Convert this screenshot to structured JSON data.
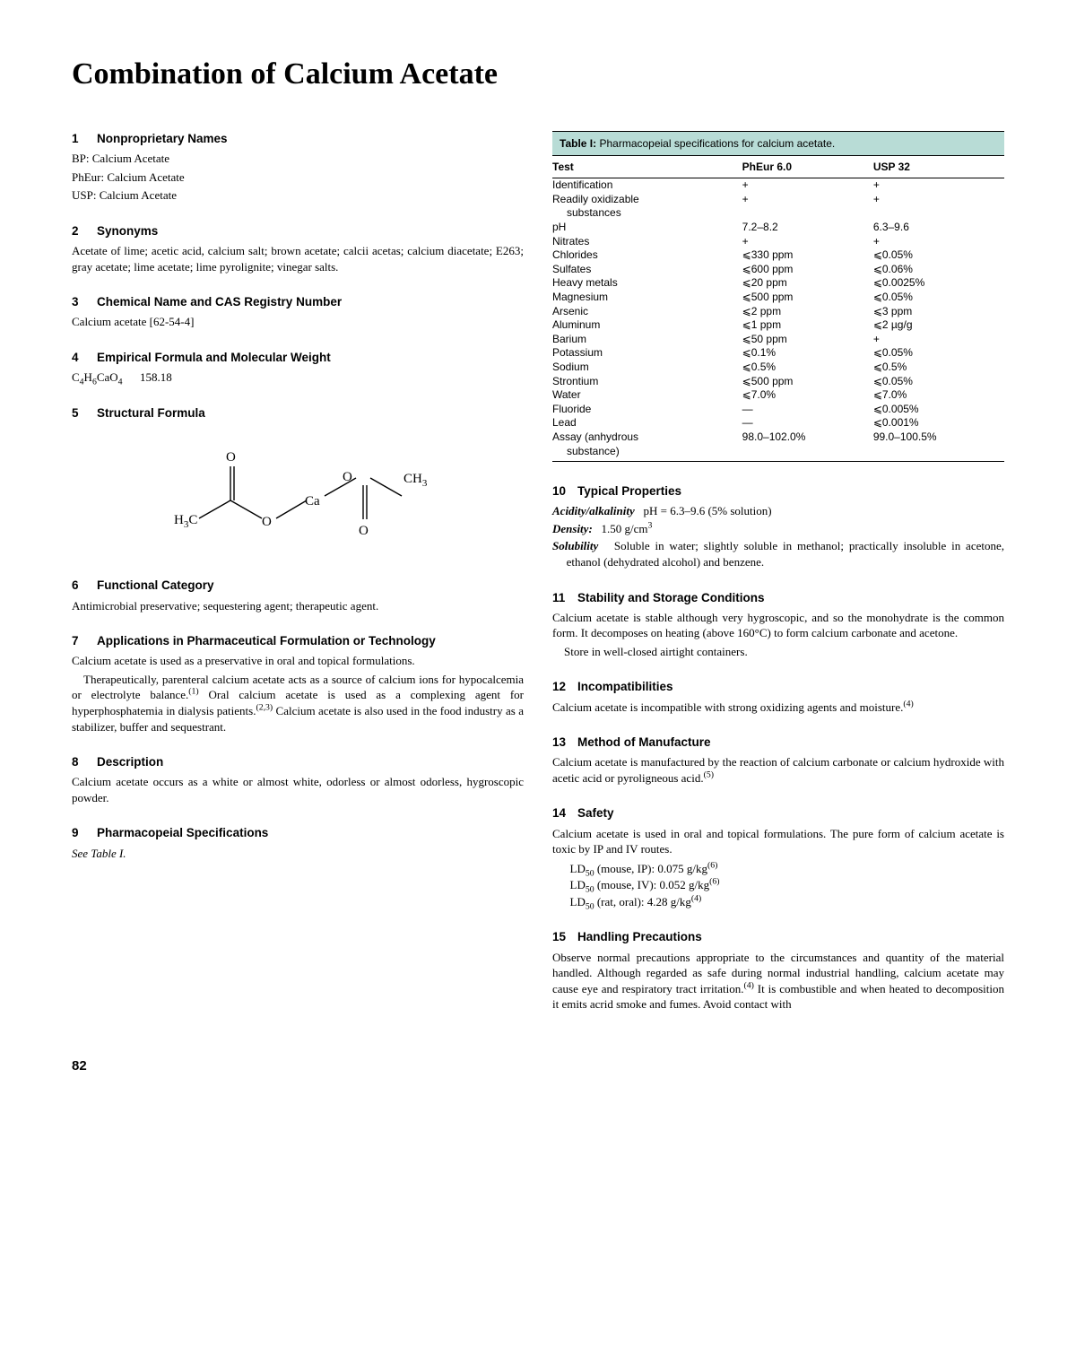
{
  "title": "Combination of Calcium Acetate",
  "page_number": "82",
  "sections": {
    "s1": {
      "num": "1",
      "title": "Nonproprietary Names",
      "l1": "BP: Calcium Acetate",
      "l2": "PhEur: Calcium Acetate",
      "l3": "USP: Calcium Acetate"
    },
    "s2": {
      "num": "2",
      "title": "Synonyms",
      "body": "Acetate of lime; acetic acid, calcium salt; brown acetate; calcii acetas; calcium diacetate; E263; gray acetate; lime acetate; lime pyrolignite; vinegar salts."
    },
    "s3": {
      "num": "3",
      "title": "Chemical Name and CAS Registry Number",
      "body": "Calcium acetate [62-54-4]"
    },
    "s4": {
      "num": "4",
      "title": "Empirical Formula and Molecular Weight",
      "mw": "158.18"
    },
    "s5": {
      "num": "5",
      "title": "Structural Formula"
    },
    "s6": {
      "num": "6",
      "title": "Functional Category",
      "body": "Antimicrobial preservative; sequestering agent; therapeutic agent."
    },
    "s7": {
      "num": "7",
      "title": "Applications in Pharmaceutical Formulation or Technology",
      "p1": "Calcium acetate is used as a preservative in oral and topical formulations.",
      "p2a": "Therapeutically, parenteral calcium acetate acts as a source of calcium ions for hypocalcemia or electrolyte balance.",
      "p2b": " Oral calcium acetate is used as a complexing agent for hyperphosphatemia in dialysis patients.",
      "p2c": " Calcium acetate is also used in the food industry as a stabilizer, buffer and sequestrant."
    },
    "s8": {
      "num": "8",
      "title": "Description",
      "body": "Calcium acetate occurs as a white or almost white, odorless or almost odorless, hygroscopic powder."
    },
    "s9": {
      "num": "9",
      "title": "Pharmacopeial Specifications",
      "body": "See Table I."
    },
    "s10": {
      "num": "10",
      "title": "Typical Properties",
      "acidity_label": "Acidity/alkalinity",
      "acidity_val": "pH = 6.3–9.6 (5% solution)",
      "density_label": "Density:",
      "density_val": "1.50 g/cm",
      "solubility_label": "Solubility",
      "solubility_val": "Soluble in water; slightly soluble in methanol; practically insoluble in acetone, ethanol (dehydrated alcohol) and benzene."
    },
    "s11": {
      "num": "11",
      "title": "Stability and Storage Conditions",
      "p1": "Calcium acetate is stable although very hygroscopic, and so the monohydrate is the common form. It decomposes on heating (above 160°C) to form calcium carbonate and acetone.",
      "p2": "Store in well-closed airtight containers."
    },
    "s12": {
      "num": "12",
      "title": "Incompatibilities",
      "body": "Calcium acetate is incompatible with strong oxidizing agents and moisture."
    },
    "s13": {
      "num": "13",
      "title": "Method of Manufacture",
      "body": "Calcium acetate is manufactured by the reaction of calcium carbonate or calcium hydroxide with acetic acid or pyroligneous acid."
    },
    "s14": {
      "num": "14",
      "title": "Safety",
      "p1": "Calcium acetate is used in oral and topical formulations. The pure form of calcium acetate is toxic by IP and IV routes.",
      "ld1a": " (mouse, IP): 0.075 g/kg",
      "ld2a": " (mouse, IV): 0.052 g/kg",
      "ld3a": " (rat, oral): 4.28 g/kg"
    },
    "s15": {
      "num": "15",
      "title": "Handling Precautions",
      "body": "Observe normal precautions appropriate to the circumstances and quantity of the material handled. Although regarded as safe during normal industrial handling, calcium acetate may cause eye and respiratory tract irritation.",
      "body2": " It is combustible and when heated to decomposition it emits acrid smoke and fumes. Avoid contact with"
    }
  },
  "table": {
    "caption_bold": "Table I:",
    "caption_rest": "Pharmacopeial specifications for calcium acetate.",
    "h1": "Test",
    "h2": "PhEur 6.0",
    "h3": "USP 32",
    "rows": [
      {
        "t": "Identification",
        "a": "+",
        "b": "+"
      },
      {
        "t": "Readily oxidizable",
        "t2": "substances",
        "a": "+",
        "b": "+"
      },
      {
        "t": "pH",
        "a": "7.2–8.2",
        "b": "6.3–9.6"
      },
      {
        "t": "Nitrates",
        "a": "+",
        "b": "+"
      },
      {
        "t": "Chlorides",
        "a": "⩽330 ppm",
        "b": "⩽0.05%"
      },
      {
        "t": "Sulfates",
        "a": "⩽600 ppm",
        "b": "⩽0.06%"
      },
      {
        "t": "Heavy metals",
        "a": "⩽20 ppm",
        "b": "⩽0.0025%"
      },
      {
        "t": "Magnesium",
        "a": "⩽500 ppm",
        "b": "⩽0.05%"
      },
      {
        "t": "Arsenic",
        "a": "⩽2 ppm",
        "b": "⩽3 ppm"
      },
      {
        "t": "Aluminum",
        "a": "⩽1 ppm",
        "b": "⩽2 µg/g"
      },
      {
        "t": "Barium",
        "a": "⩽50 ppm",
        "b": "+"
      },
      {
        "t": "Potassium",
        "a": "⩽0.1%",
        "b": "⩽0.05%"
      },
      {
        "t": "Sodium",
        "a": "⩽0.5%",
        "b": "⩽0.5%"
      },
      {
        "t": "Strontium",
        "a": "⩽500 ppm",
        "b": "⩽0.05%"
      },
      {
        "t": "Water",
        "a": "⩽7.0%",
        "b": "⩽7.0%"
      },
      {
        "t": "Fluoride",
        "a": "—",
        "b": "⩽0.005%"
      },
      {
        "t": "Lead",
        "a": "—",
        "b": "⩽0.001%"
      },
      {
        "t": "Assay (anhydrous",
        "t2": "substance)",
        "a": "98.0–102.0%",
        "b": "99.0–100.5%"
      }
    ]
  },
  "struct_svg": {
    "labels": {
      "h3c": "H₃C",
      "ch3": "CH₃",
      "o": "O",
      "ca": "Ca"
    }
  }
}
